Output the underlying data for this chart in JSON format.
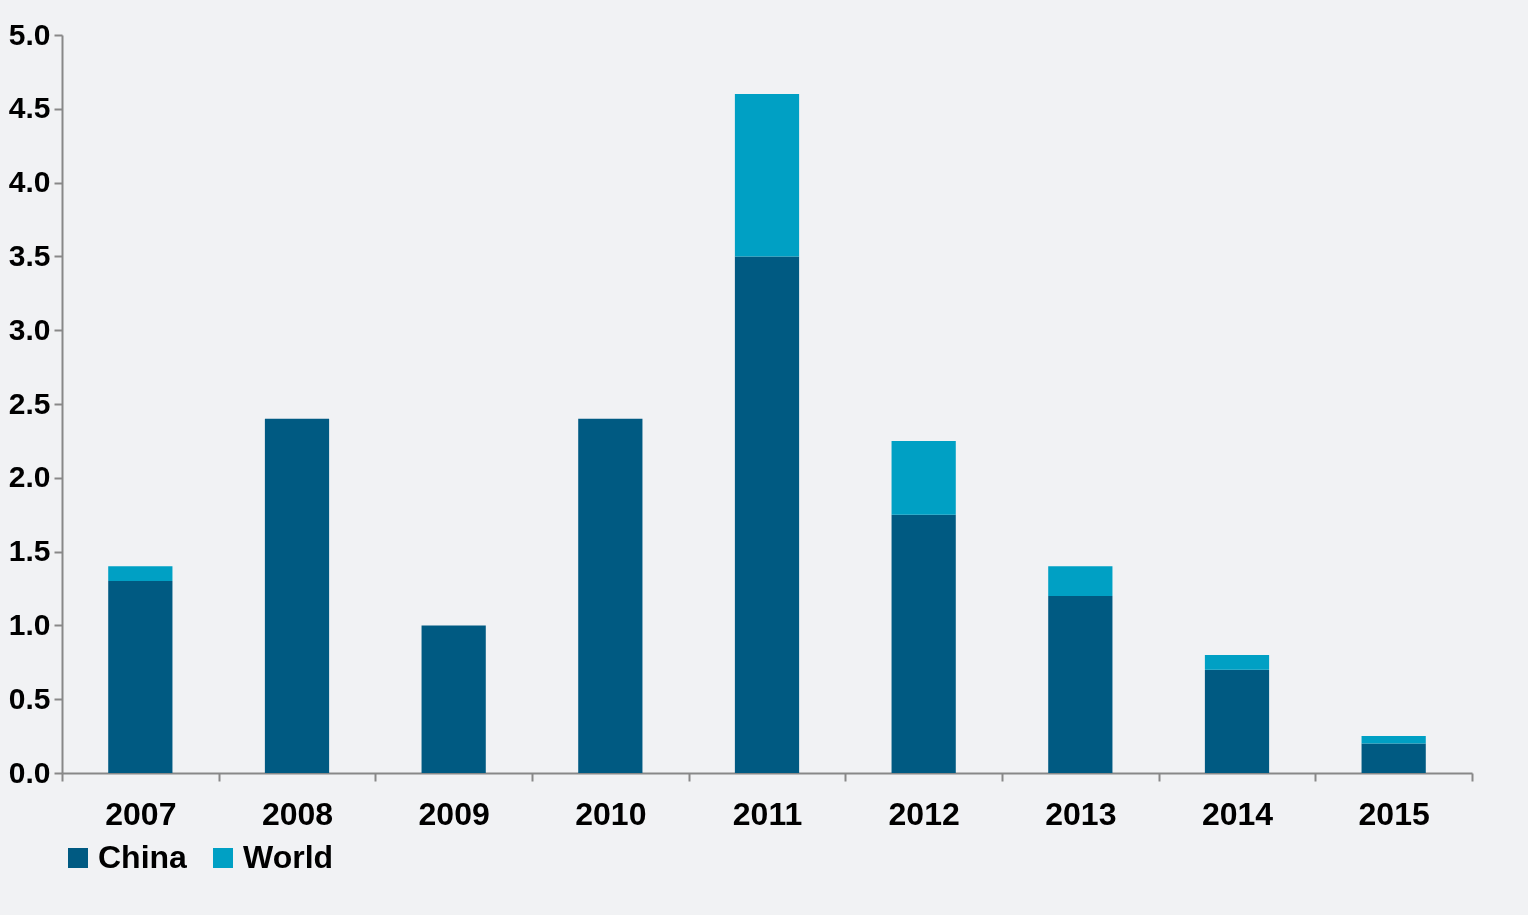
{
  "chart_data": {
    "type": "bar",
    "stacked": true,
    "categories": [
      "2007",
      "2008",
      "2009",
      "2010",
      "2011",
      "2012",
      "2013",
      "2014",
      "2015"
    ],
    "series": [
      {
        "name": "China",
        "color": "#005a82",
        "values": [
          1.3,
          2.4,
          1.0,
          2.4,
          3.5,
          1.75,
          1.2,
          0.7,
          0.2
        ]
      },
      {
        "name": "World",
        "color": "#00a0c4",
        "values": [
          0.1,
          null,
          null,
          null,
          1.1,
          0.5,
          0.2,
          0.1,
          0.05
        ]
      }
    ],
    "ylim": [
      0,
      5
    ],
    "yticks": [
      {
        "value": 0,
        "label": "0.0"
      },
      {
        "value": 0.5,
        "label": "0.5"
      },
      {
        "value": 1,
        "label": "1.0"
      },
      {
        "value": 1.5,
        "label": "1.5"
      },
      {
        "value": 2,
        "label": "2.0"
      },
      {
        "value": 2.5,
        "label": "2.5"
      },
      {
        "value": 3,
        "label": "3.0"
      },
      {
        "value": 3.5,
        "label": "3.5"
      },
      {
        "value": 4,
        "label": "4.0"
      },
      {
        "value": 4.5,
        "label": "4.5"
      },
      {
        "value": 5,
        "label": "5.0"
      }
    ],
    "grid": false,
    "legend": "bottom"
  }
}
